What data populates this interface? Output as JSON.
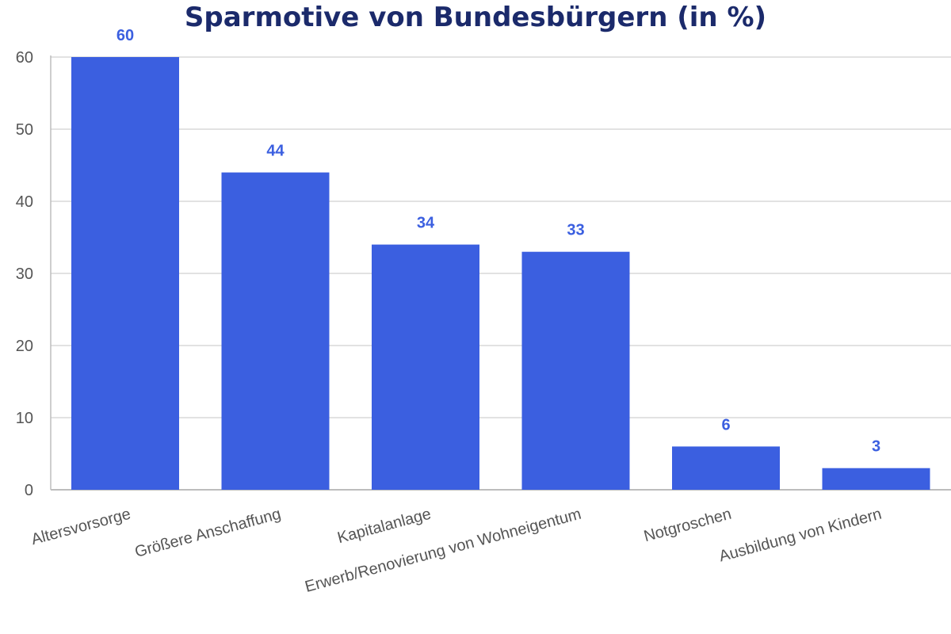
{
  "colors": {
    "bar": "#3b5fe0",
    "title": "#1b2a6b",
    "grid": "#d9d9d9",
    "axis": "#bdbdbd",
    "tick_text": "#555555",
    "data_label": "#3b5fe0"
  },
  "chart_data": {
    "type": "bar",
    "title": "Sparmotive von Bundesbürgern (in %)",
    "xlabel": "",
    "ylabel": "",
    "categories": [
      "Altersvorsorge",
      "Größere Anschaffung",
      "Kapitalanlage",
      "Erwerb/Renovierung von Wohneigentum",
      "Notgroschen",
      "Ausbildung von Kindern"
    ],
    "values": [
      60,
      44,
      34,
      33,
      6,
      3
    ],
    "ylim": [
      0,
      60
    ],
    "yticks": [
      0,
      10,
      20,
      30,
      40,
      50,
      60
    ],
    "grid": true,
    "data_labels": true,
    "legend": "none"
  }
}
